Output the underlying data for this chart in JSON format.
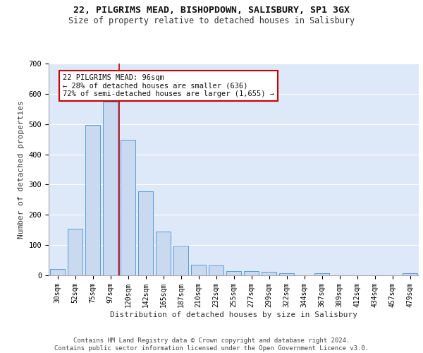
{
  "title_line1": "22, PILGRIMS MEAD, BISHOPDOWN, SALISBURY, SP1 3GX",
  "title_line2": "Size of property relative to detached houses in Salisbury",
  "xlabel": "Distribution of detached houses by size in Salisbury",
  "ylabel": "Number of detached properties",
  "bar_labels": [
    "30sqm",
    "52sqm",
    "75sqm",
    "97sqm",
    "120sqm",
    "142sqm",
    "165sqm",
    "187sqm",
    "210sqm",
    "232sqm",
    "255sqm",
    "277sqm",
    "299sqm",
    "322sqm",
    "344sqm",
    "367sqm",
    "389sqm",
    "412sqm",
    "434sqm",
    "457sqm",
    "479sqm"
  ],
  "bar_values": [
    22,
    155,
    497,
    573,
    447,
    277,
    144,
    98,
    35,
    32,
    15,
    15,
    12,
    7,
    0,
    8,
    0,
    0,
    0,
    0,
    8
  ],
  "bar_color": "#c9d9f0",
  "bar_edge_color": "#5b9bd5",
  "vline_x": 3.5,
  "vline_color": "#cc0000",
  "annotation_title": "22 PILGRIMS MEAD: 96sqm",
  "annotation_line2": "← 28% of detached houses are smaller (636)",
  "annotation_line3": "72% of semi-detached houses are larger (1,655) →",
  "annotation_box_color": "#cc0000",
  "ylim": [
    0,
    700
  ],
  "yticks": [
    0,
    100,
    200,
    300,
    400,
    500,
    600,
    700
  ],
  "footer_line1": "Contains HM Land Registry data © Crown copyright and database right 2024.",
  "footer_line2": "Contains public sector information licensed under the Open Government Licence v3.0.",
  "bg_color": "#dde8f8",
  "grid_color": "#ffffff",
  "title_fontsize": 9.5,
  "subtitle_fontsize": 8.5,
  "axis_label_fontsize": 8,
  "tick_fontsize": 7,
  "annotation_fontsize": 7.5,
  "footer_fontsize": 6.5
}
